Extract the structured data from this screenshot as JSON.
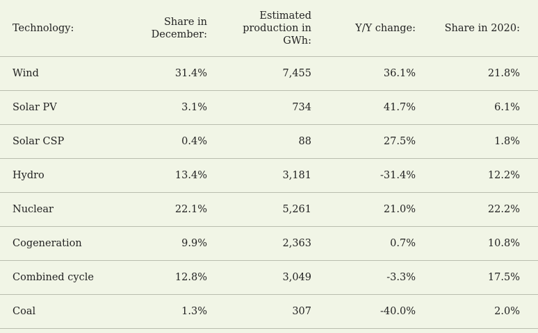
{
  "table": {
    "headers": [
      "Technology:",
      "Share in\nDecember:",
      "Estimated\nproduction in\nGWh:",
      "Y/Y change:",
      "Share in 2020:"
    ],
    "header_lines": {
      "share_dec": [
        "Share in",
        "December:"
      ],
      "production": [
        "Estimated",
        "production in",
        "GWh:"
      ]
    },
    "rows": [
      [
        "Wind",
        "31.4%",
        "7,455",
        "36.1%",
        "21.8%"
      ],
      [
        "Solar PV",
        "3.1%",
        "734",
        "41.7%",
        "6.1%"
      ],
      [
        "Solar CSP",
        "0.4%",
        "88",
        "27.5%",
        "1.8%"
      ],
      [
        "Hydro",
        "13.4%",
        "3,181",
        "-31.4%",
        "12.2%"
      ],
      [
        "Nuclear",
        "22.1%",
        "5,261",
        "21.0%",
        "22.2%"
      ],
      [
        "Cogeneration",
        "9.9%",
        "2,363",
        "0.7%",
        "10.8%"
      ],
      [
        "Combined cycle",
        "12.8%",
        "3,049",
        "-3.3%",
        "17.5%"
      ],
      [
        "Coal",
        "1.3%",
        "307",
        "-40.0%",
        "2.0%"
      ]
    ]
  },
  "colors": {
    "background": "#f1f5e6",
    "text": "#222222",
    "rule": "#b9bcae"
  }
}
